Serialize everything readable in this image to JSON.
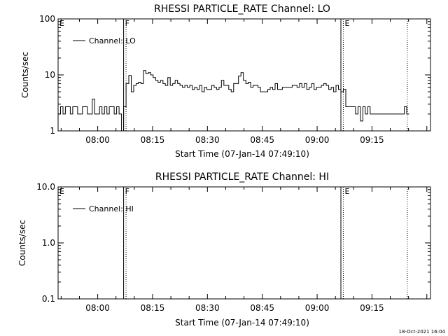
{
  "footer": {
    "date": "18-Oct-2021 16:04"
  },
  "chart_data": [
    {
      "type": "line",
      "title": "RHESSI PARTICLE_RATE Channel: LO",
      "xlabel": "Start Time (07-Jan-14 07:49:10)",
      "ylabel": "Counts/sec",
      "yscale": "log",
      "ylim": [
        1,
        100
      ],
      "yticks": [
        1,
        10,
        100
      ],
      "ytick_labels": [
        "1",
        "10",
        "100"
      ],
      "xlim": [
        "07:49:10",
        "09:31:00"
      ],
      "xticks": [
        "08:00",
        "08:15",
        "08:30",
        "08:45",
        "09:00",
        "09:15"
      ],
      "legend": {
        "position": "top-left",
        "label": "Channel: LO"
      },
      "grid": false,
      "markers": [
        {
          "time": "07:49:10",
          "label": "E",
          "style": "solid"
        },
        {
          "time": "08:07:05",
          "label": "F",
          "style": "solid"
        },
        {
          "time": "08:07:45",
          "label": "",
          "style": "dotted"
        },
        {
          "time": "09:06:30",
          "label": "",
          "style": "solid"
        },
        {
          "time": "09:07:10",
          "label": "E",
          "style": "dotted"
        },
        {
          "time": "09:24:40",
          "label": "",
          "style": "dotted"
        }
      ],
      "series": [
        {
          "name": "Channel: LO",
          "x": [
            "07:49:10",
            "07:49:50",
            "07:50:30",
            "07:51:10",
            "07:51:50",
            "07:52:30",
            "07:53:10",
            "07:53:50",
            "07:54:30",
            "07:55:10",
            "07:55:50",
            "07:56:30",
            "07:57:10",
            "07:57:50",
            "07:58:30",
            "07:59:10",
            "07:59:50",
            "08:00:30",
            "08:01:10",
            "08:01:50",
            "08:02:30",
            "08:03:10",
            "08:03:50",
            "08:04:30",
            "08:05:10",
            "08:05:50",
            "08:06:30",
            "08:07:05",
            "08:07:45",
            "08:08:30",
            "08:09:10",
            "08:09:50",
            "08:10:30",
            "08:11:10",
            "08:11:50",
            "08:12:30",
            "08:13:10",
            "08:13:50",
            "08:14:30",
            "08:15:10",
            "08:15:50",
            "08:16:30",
            "08:17:10",
            "08:17:50",
            "08:18:30",
            "08:19:10",
            "08:19:50",
            "08:20:30",
            "08:21:10",
            "08:21:50",
            "08:22:30",
            "08:23:10",
            "08:23:50",
            "08:24:30",
            "08:25:10",
            "08:25:50",
            "08:26:30",
            "08:27:10",
            "08:27:50",
            "08:28:30",
            "08:29:10",
            "08:29:50",
            "08:30:30",
            "08:31:10",
            "08:31:50",
            "08:32:30",
            "08:33:10",
            "08:33:50",
            "08:34:30",
            "08:35:10",
            "08:35:50",
            "08:36:30",
            "08:37:10",
            "08:37:50",
            "08:38:30",
            "08:39:10",
            "08:39:50",
            "08:40:30",
            "08:41:10",
            "08:41:50",
            "08:42:30",
            "08:43:10",
            "08:43:50",
            "08:44:30",
            "08:45:10",
            "08:45:50",
            "08:46:30",
            "08:47:10",
            "08:47:50",
            "08:48:30",
            "08:49:10",
            "08:49:50",
            "08:50:30",
            "08:51:10",
            "08:51:50",
            "08:52:30",
            "08:53:10",
            "08:53:50",
            "08:54:30",
            "08:55:10",
            "08:55:50",
            "08:56:30",
            "08:57:10",
            "08:57:50",
            "08:58:30",
            "08:59:10",
            "08:59:50",
            "09:00:30",
            "09:01:10",
            "09:01:50",
            "09:02:30",
            "09:03:10",
            "09:03:50",
            "09:04:30",
            "09:05:10",
            "09:05:50",
            "09:06:30",
            "09:07:10",
            "09:07:50",
            "09:08:30",
            "09:09:10",
            "09:09:50",
            "09:10:30",
            "09:11:10",
            "09:11:50",
            "09:12:30",
            "09:13:10",
            "09:13:50",
            "09:14:30",
            "09:15:10",
            "09:15:50",
            "09:16:30",
            "09:17:10",
            "09:17:50",
            "09:18:30",
            "09:19:10",
            "09:19:50",
            "09:20:30",
            "09:21:10",
            "09:21:50",
            "09:22:30",
            "09:23:10",
            "09:23:50",
            "09:24:30"
          ],
          "y": [
            2,
            2.7,
            2,
            2.7,
            2.7,
            2,
            2.7,
            2.7,
            2,
            2,
            2.7,
            2.7,
            2,
            2,
            3.7,
            2,
            2,
            2.7,
            2,
            2.7,
            2,
            2.7,
            2.7,
            2,
            2.7,
            2,
            1,
            2.7,
            7,
            9.8,
            5,
            6.5,
            7,
            7.4,
            7,
            12,
            10.5,
            11,
            10,
            9,
            8,
            7.4,
            8,
            7,
            6.5,
            9,
            6.5,
            7,
            8,
            7,
            6.5,
            6,
            6.5,
            6,
            6.5,
            5.5,
            6,
            5.5,
            6.5,
            5,
            6,
            5.5,
            5.5,
            6.5,
            6,
            5.5,
            6,
            8,
            6.5,
            6.5,
            5.5,
            5,
            7,
            7,
            9.5,
            11,
            8,
            7,
            7.4,
            6,
            6.5,
            6.5,
            6,
            5,
            5,
            5,
            5.5,
            6,
            5.5,
            7,
            5.5,
            5.5,
            6,
            6,
            6,
            6,
            6.5,
            6.5,
            6,
            7,
            6,
            7,
            5.5,
            6,
            7,
            5.5,
            6,
            6,
            6.5,
            7,
            6.5,
            5.5,
            6,
            5,
            6.5,
            5.5,
            5,
            5.5,
            2.7,
            2.7,
            2.7,
            2.7,
            2,
            2.7,
            1.5,
            2.7,
            2,
            2.7,
            2,
            2,
            2,
            2,
            2,
            2,
            2,
            2,
            2,
            2,
            2,
            2,
            2,
            2,
            2.7,
            2
          ]
        }
      ]
    },
    {
      "type": "line",
      "title": "RHESSI PARTICLE_RATE Channel: HI",
      "xlabel": "Start Time (07-Jan-14 07:49:10)",
      "ylabel": "Counts/sec",
      "yscale": "log",
      "ylim": [
        0.1,
        10
      ],
      "yticks": [
        0.1,
        1,
        10
      ],
      "ytick_labels": [
        "0.1",
        "1.0",
        "10.0"
      ],
      "xlim": [
        "07:49:10",
        "09:31:00"
      ],
      "xticks": [
        "08:00",
        "08:15",
        "08:30",
        "08:45",
        "09:00",
        "09:15"
      ],
      "legend": {
        "position": "top-left",
        "label": "Channel: HI"
      },
      "grid": false,
      "markers": [
        {
          "time": "07:49:10",
          "label": "E",
          "style": "solid"
        },
        {
          "time": "08:07:05",
          "label": "F",
          "style": "solid"
        },
        {
          "time": "08:07:45",
          "label": "",
          "style": "dotted"
        },
        {
          "time": "09:06:30",
          "label": "",
          "style": "solid"
        },
        {
          "time": "09:07:10",
          "label": "E",
          "style": "dotted"
        },
        {
          "time": "09:24:40",
          "label": "",
          "style": "dotted"
        }
      ],
      "series": [
        {
          "name": "Channel: HI",
          "x": [],
          "y": []
        }
      ]
    }
  ]
}
